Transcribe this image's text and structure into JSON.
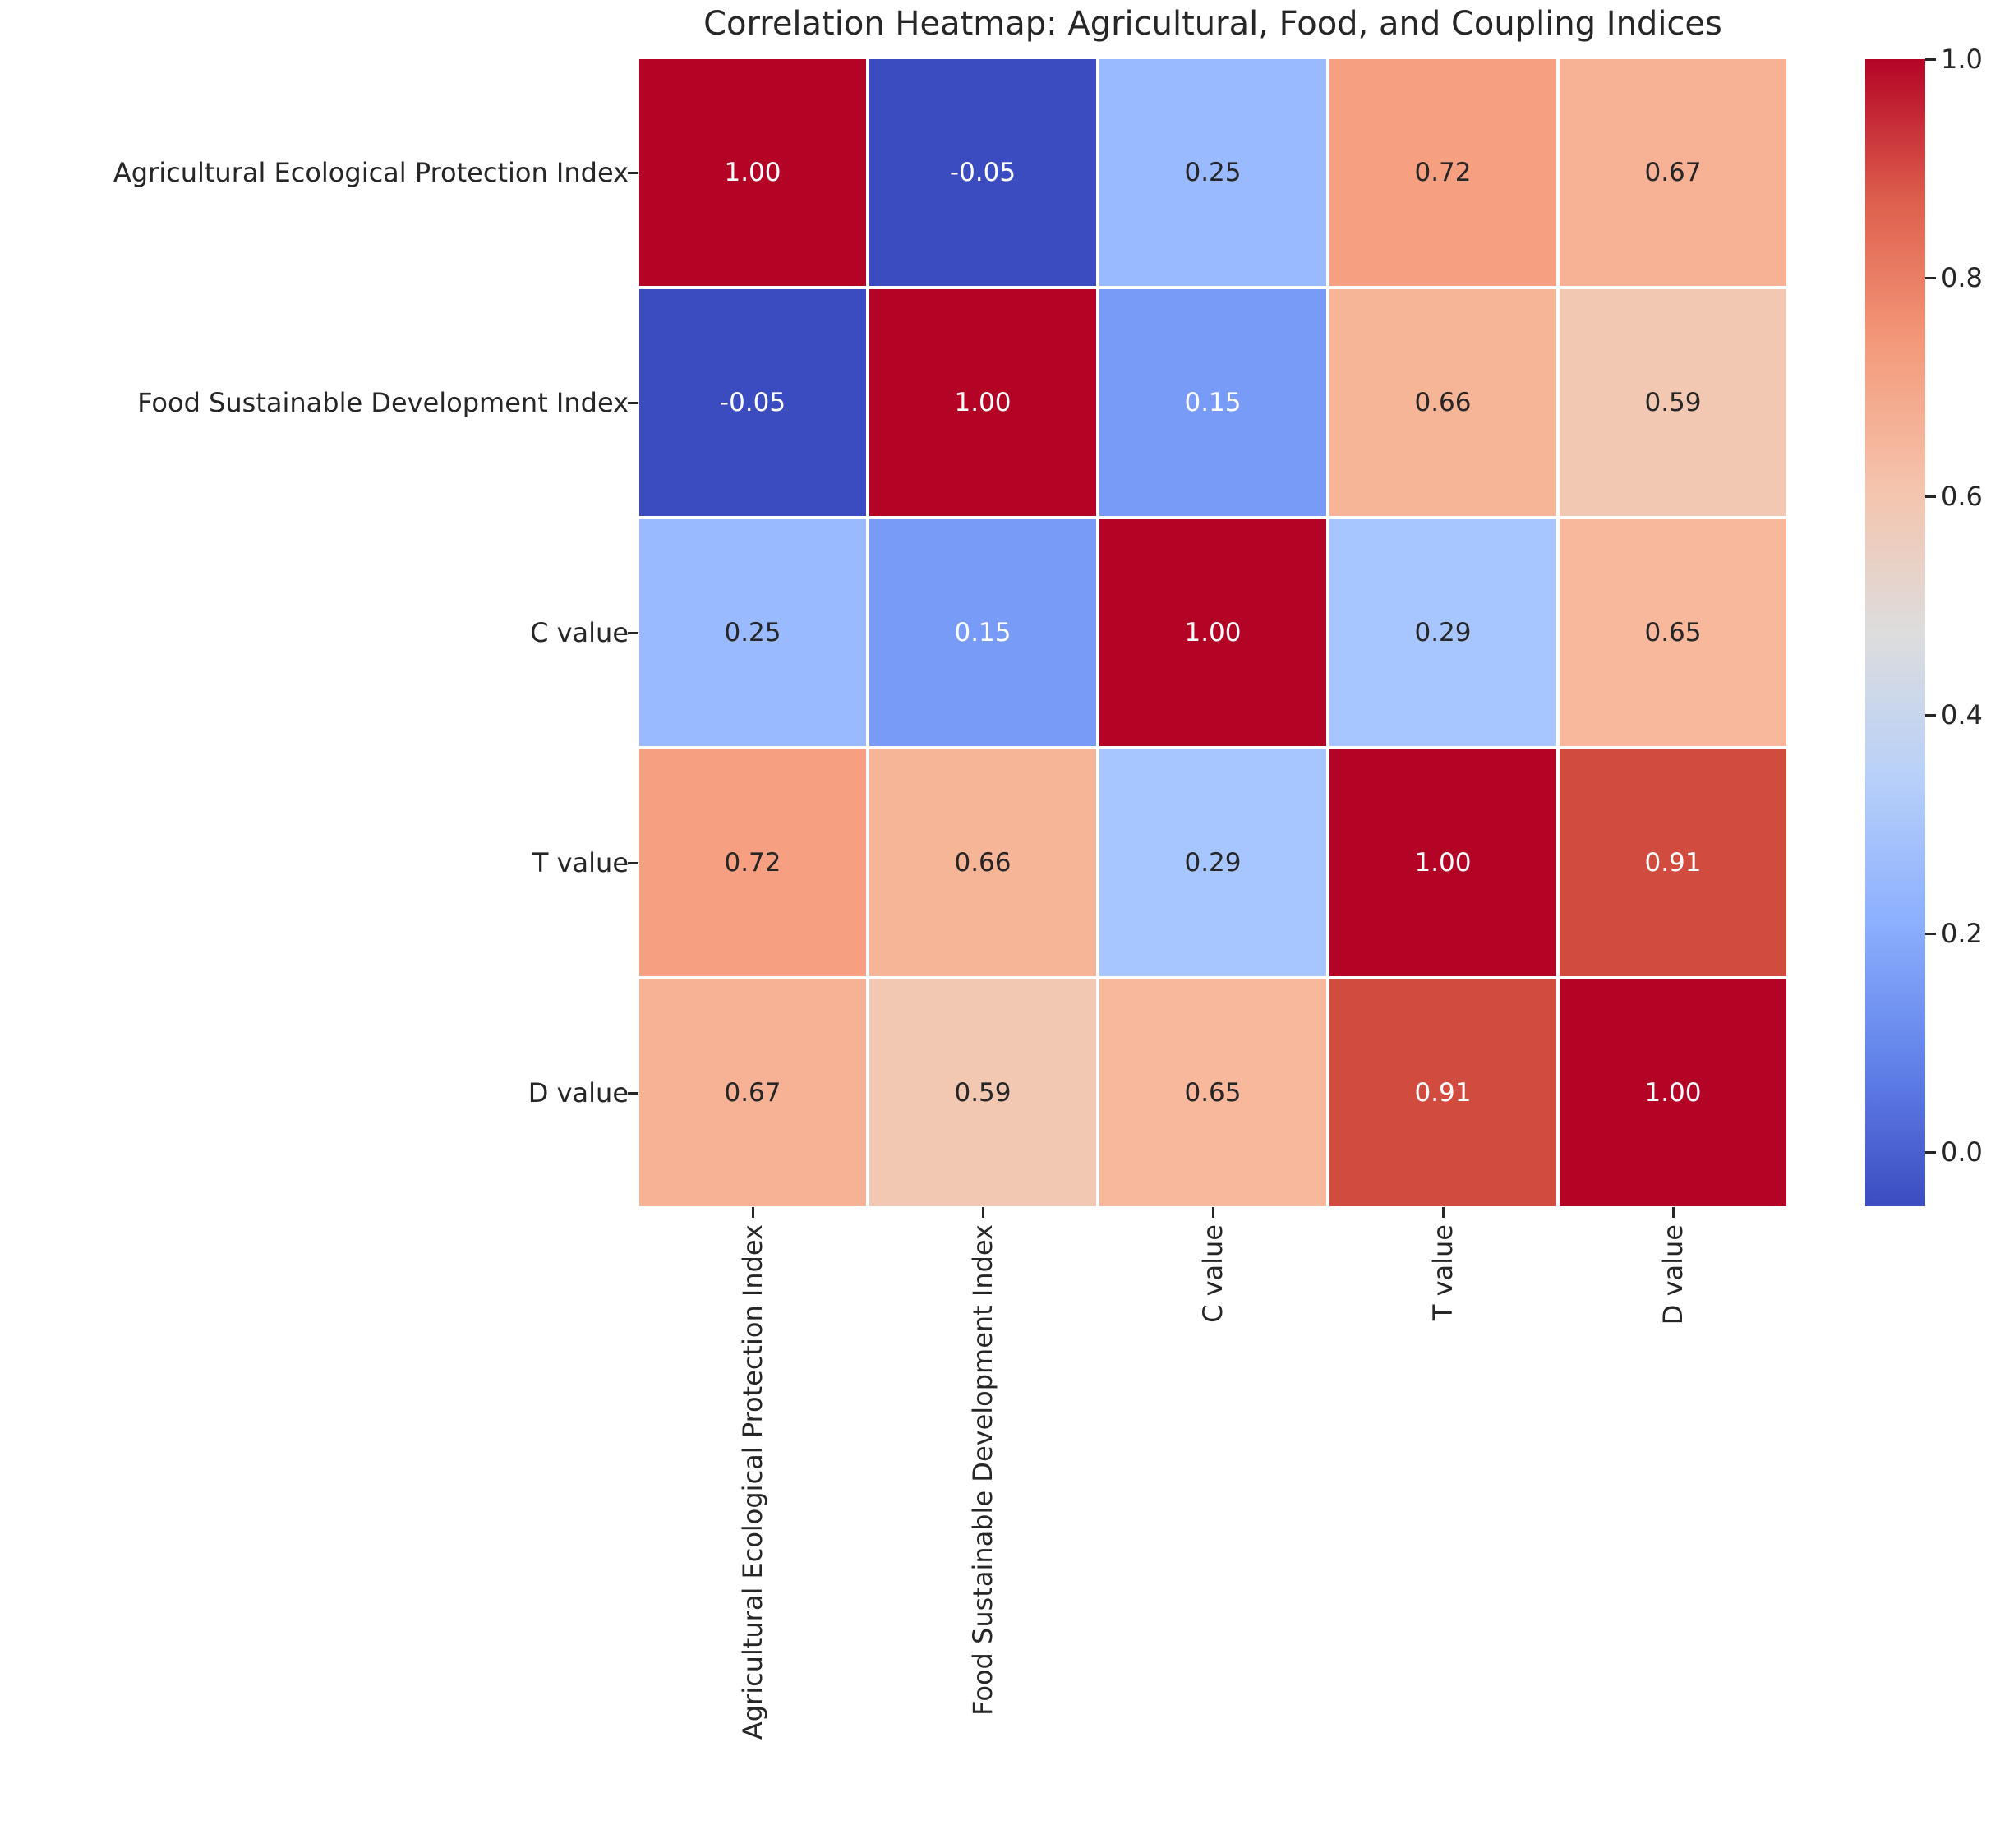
{
  "chart_data": {
    "type": "heatmap",
    "title": "Correlation Heatmap: Agricultural, Food, and Coupling Indices",
    "axis_labels": [
      "Agricultural Ecological Protection Index",
      "Food Sustainable Development Index",
      "C value",
      "T value",
      "D value"
    ],
    "matrix": [
      [
        1.0,
        -0.05,
        0.25,
        0.72,
        0.67
      ],
      [
        -0.05,
        1.0,
        0.15,
        0.66,
        0.59
      ],
      [
        0.25,
        0.15,
        1.0,
        0.29,
        0.65
      ],
      [
        0.72,
        0.66,
        0.29,
        1.0,
        0.91
      ],
      [
        0.67,
        0.59,
        0.65,
        0.91,
        1.0
      ]
    ],
    "colormap": "coolwarm",
    "vmin": -0.05,
    "vmax": 1.0,
    "grid": false,
    "legend_position": "colorbar-right",
    "colorbar_tick_values": [
      1.0,
      0.8,
      0.6,
      0.4,
      0.2,
      0.0
    ],
    "colorbar_tick_labels": [
      "1.0",
      "0.8",
      "0.6",
      "0.4",
      "0.2",
      "0.0"
    ],
    "value_colors": {
      "1.00": "#b40426",
      "0.91": "#d24b3f",
      "0.72": "#f6a081",
      "0.67": "#f7b195",
      "0.66": "#f7b598",
      "0.65": "#f7b89c",
      "0.59": "#f3c8b3",
      "0.29": "#a7c5fe",
      "0.25": "#9abaff",
      "0.15": "#789bf7",
      "-0.05": "#3b4cc0"
    },
    "colorbar_gradient_top_to_bottom": [
      "#b40426",
      "#de604d",
      "#f49a7b",
      "#f5c4ad",
      "#dddddd",
      "#b8d0f9",
      "#8db0fe",
      "#6282ea",
      "#3b4cc0"
    ],
    "annotation_colors": {
      "dark": "#262626",
      "light": "#ffffff"
    },
    "background": "#ffffff"
  }
}
